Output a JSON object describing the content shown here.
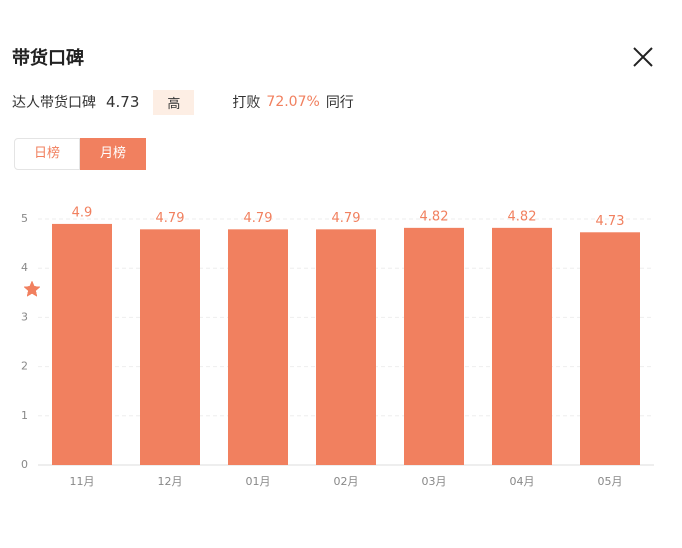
{
  "header": {
    "title": "带货口碑"
  },
  "rating": {
    "label": "达人带货口碑",
    "score": 4.73,
    "level": "高",
    "beat_prefix": "打败",
    "beat_value": "72.07%",
    "beat_suffix": "同行"
  },
  "tabs": [
    "日榜",
    "月榜"
  ],
  "chart_data": {
    "type": "bar",
    "categories": [
      "11月",
      "12月",
      "01月",
      "02月",
      "03月",
      "04月",
      "05月"
    ],
    "values": [
      4.9,
      4.79,
      4.79,
      4.79,
      4.82,
      4.82,
      4.73
    ],
    "color": "#f1805f",
    "ylim": [
      0,
      5
    ],
    "yticks": [
      0,
      1,
      2,
      3,
      4,
      5
    ],
    "grid": true
  }
}
